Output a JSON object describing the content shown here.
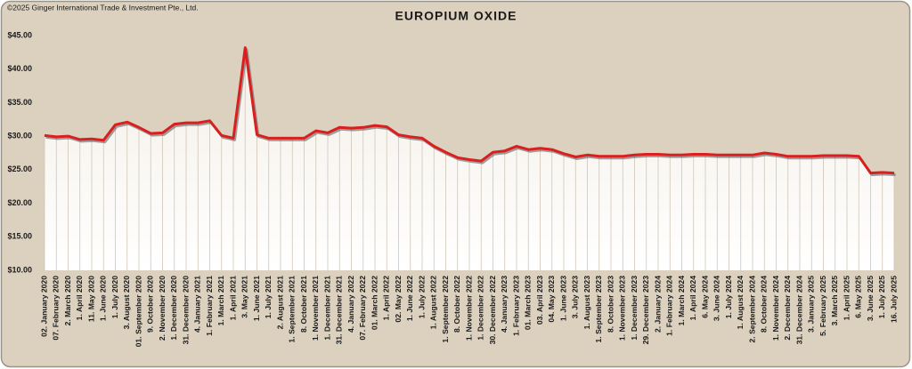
{
  "copyright": "©2025 Ginger International Trade & Investment Pte., Ltd.",
  "chart_data": {
    "type": "line",
    "title": "EUROPIUM OXIDE",
    "categories": [
      "02. January 2020",
      "07. February 2020",
      "2. March 2020",
      "1. April 2020",
      "11. May 2020",
      "1. June 2020",
      "1. July 2020",
      "3. August 2020",
      "01. September 2020",
      "9. October 2020",
      "2. November 2020",
      "1. December 2020",
      "31. December 2020",
      "4. January 2021",
      "1. February 2021",
      "1. March 2021",
      "1. April 2021",
      "3. May 2021",
      "1. June 2021",
      "1. July 2021",
      "2. August 2021",
      "1. September 2021",
      "8. October 2021",
      "1. November 2021",
      "1. December 2021",
      "31. December 2021",
      "4. January 2022",
      "07. February 2022",
      "01. March 2022",
      "1. April 2022",
      "02. May 2022",
      "1. June 2022",
      "1. July 2022",
      "1. August 2022",
      "1. September 2022",
      "8. October 2022",
      "1. November 2022",
      "1. December 2022",
      "30. December 2022",
      "4. January 2023",
      "1. February 2023",
      "01. March 2023",
      "03. April 2023",
      "04. May 2023",
      "1. June 2023",
      "3. July 2023",
      "1. August 2023",
      "1. September 2023",
      "8. October 2023",
      "1. November 2023",
      "1. December 2023",
      "29. December 2023",
      "2. January 2024",
      "1. February 2024",
      "1. March 2024",
      "1. April 2024",
      "6. May 2024",
      "3. June 2024",
      "1. July 2024",
      "1. August 2024",
      "2. September 2024",
      "8. October 2024",
      "1. November 2024",
      "2. December 2024",
      "31. December 2024",
      "3. January 2025",
      "5. February 2025",
      "3. March 2025",
      "1. April 2025",
      "6. May 2025",
      "3. June 2025",
      "1. July 2025",
      "16. July 2025"
    ],
    "values": [
      30.1,
      29.9,
      30.0,
      29.5,
      29.6,
      29.4,
      31.7,
      32.1,
      31.3,
      30.4,
      30.5,
      31.8,
      32.0,
      32.0,
      32.3,
      30.1,
      29.7,
      43.2,
      30.2,
      29.7,
      29.7,
      29.7,
      29.7,
      30.8,
      30.5,
      31.3,
      31.2,
      31.3,
      31.6,
      31.4,
      30.2,
      29.9,
      29.7,
      28.5,
      27.6,
      26.8,
      26.5,
      26.3,
      27.6,
      27.8,
      28.5,
      28.0,
      28.2,
      28.0,
      27.4,
      26.9,
      27.2,
      27.0,
      27.0,
      27.0,
      27.2,
      27.3,
      27.3,
      27.2,
      27.2,
      27.3,
      27.3,
      27.2,
      27.2,
      27.2,
      27.2,
      27.5,
      27.3,
      27.0,
      27.0,
      27.0,
      27.1,
      27.1,
      27.1,
      27.0,
      24.5,
      24.6,
      24.5
    ],
    "color": "#d91f1f",
    "ylim": [
      10,
      45
    ],
    "yticks": [
      {
        "value": 10,
        "label": "$10.00"
      },
      {
        "value": 15,
        "label": "$15.00"
      },
      {
        "value": 20,
        "label": "$20.00"
      },
      {
        "value": 25,
        "label": "$25.00"
      },
      {
        "value": 30,
        "label": "$30.00"
      },
      {
        "value": 35,
        "label": "$35.00"
      },
      {
        "value": 40,
        "label": "$40.00"
      },
      {
        "value": 45,
        "label": "$45.00"
      }
    ]
  }
}
